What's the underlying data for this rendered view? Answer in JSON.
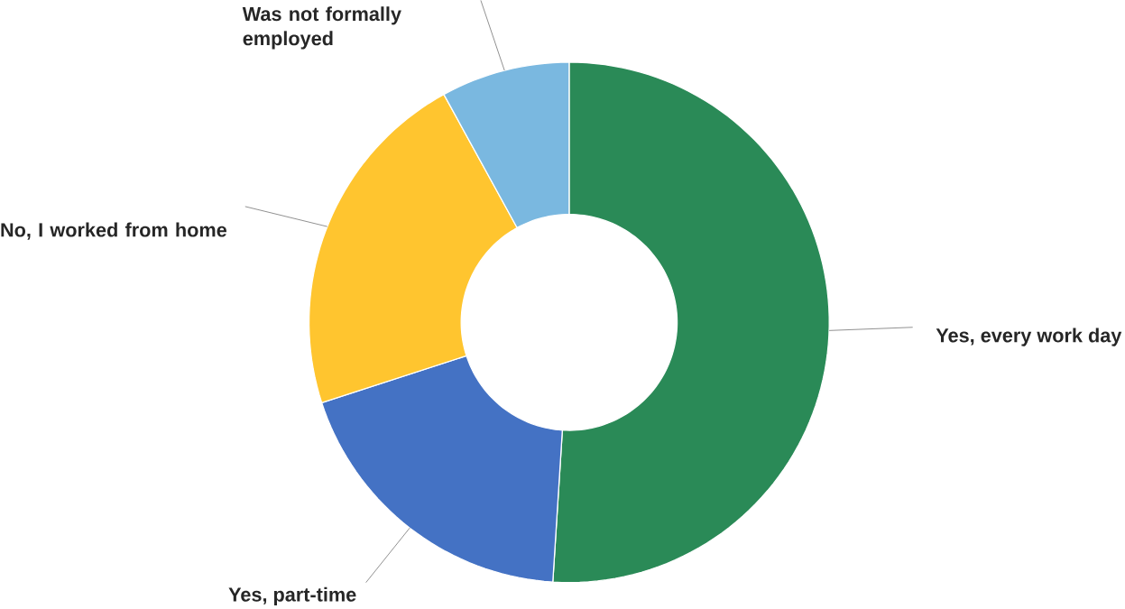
{
  "chart_data": {
    "type": "donut",
    "categories": [
      "Yes, every work day",
      "Yes, part-time",
      "No, I worked from home",
      "Was not formally employed"
    ],
    "values": [
      51,
      19,
      22,
      8
    ],
    "colors": [
      "#2a8a57",
      "#4472c4",
      "#ffc52f",
      "#7ab8e0"
    ]
  }
}
